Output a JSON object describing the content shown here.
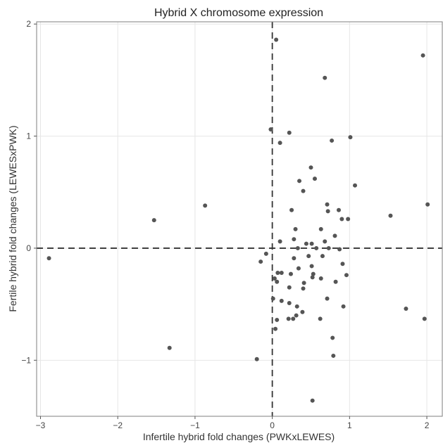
{
  "chart_data": {
    "type": "scatter",
    "title": "Hybrid X chromosome expression",
    "xlabel": "Infertile hybrid fold changes (PWKxLEWES)",
    "ylabel": "Fertile hybrid fold changes (LEWESxPWK)",
    "xlim": [
      -3.05,
      2.2
    ],
    "ylim": [
      -1.5,
      2.02
    ],
    "x_ticks": [
      -3,
      -2,
      -1,
      0,
      1,
      2
    ],
    "x_tick_labels": [
      "−3",
      "−2",
      "−1",
      "0",
      "1",
      "2"
    ],
    "y_ticks": [
      -1,
      0,
      1,
      2
    ],
    "y_tick_labels": [
      "−1",
      "0",
      "1",
      "2"
    ],
    "grid": true,
    "reference_lines": [
      {
        "axis": "x",
        "value": 0,
        "style": "dashed"
      },
      {
        "axis": "y",
        "value": 0,
        "style": "dashed"
      }
    ],
    "colors": {
      "points": "#555555",
      "grid": "#e6e6e6",
      "panel_border": "#7f7f7f",
      "reference": "#333333"
    },
    "points": [
      {
        "x": 0.05,
        "y": 1.86
      },
      {
        "x": 1.95,
        "y": 1.72
      },
      {
        "x": 0.68,
        "y": 1.52
      },
      {
        "x": -0.02,
        "y": 1.06
      },
      {
        "x": 0.22,
        "y": 1.03
      },
      {
        "x": 1.01,
        "y": 0.99
      },
      {
        "x": 0.77,
        "y": 0.96
      },
      {
        "x": 0.1,
        "y": 0.94
      },
      {
        "x": 0.5,
        "y": 0.72
      },
      {
        "x": 0.55,
        "y": 0.62
      },
      {
        "x": 0.35,
        "y": 0.6
      },
      {
        "x": 1.07,
        "y": 0.56
      },
      {
        "x": 0.4,
        "y": 0.51
      },
      {
        "x": 0.71,
        "y": 0.39
      },
      {
        "x": 2.01,
        "y": 0.39
      },
      {
        "x": -0.87,
        "y": 0.38
      },
      {
        "x": 0.25,
        "y": 0.34
      },
      {
        "x": 0.86,
        "y": 0.34
      },
      {
        "x": 0.72,
        "y": 0.33
      },
      {
        "x": 1.53,
        "y": 0.29
      },
      {
        "x": 0.9,
        "y": 0.26
      },
      {
        "x": 0.98,
        "y": 0.26
      },
      {
        "x": -1.53,
        "y": 0.25
      },
      {
        "x": 0.3,
        "y": 0.17
      },
      {
        "x": 0.63,
        "y": 0.17
      },
      {
        "x": 0.81,
        "y": 0.11
      },
      {
        "x": 0.28,
        "y": 0.08
      },
      {
        "x": 0.1,
        "y": 0.06
      },
      {
        "x": 0.44,
        "y": 0.04
      },
      {
        "x": 0.51,
        "y": 0.04
      },
      {
        "x": 0.68,
        "y": 0.06
      },
      {
        "x": 0.33,
        "y": 0.0
      },
      {
        "x": 0.57,
        "y": 0.0
      },
      {
        "x": 0.73,
        "y": 0.0
      },
      {
        "x": 0.87,
        "y": -0.01
      },
      {
        "x": -0.08,
        "y": -0.05
      },
      {
        "x": 0.47,
        "y": -0.07
      },
      {
        "x": 0.65,
        "y": -0.07
      },
      {
        "x": 0.28,
        "y": -0.09
      },
      {
        "x": -2.89,
        "y": -0.09
      },
      {
        "x": -0.15,
        "y": -0.12
      },
      {
        "x": 0.51,
        "y": -0.16
      },
      {
        "x": 0.91,
        "y": -0.14
      },
      {
        "x": 0.34,
        "y": -0.18
      },
      {
        "x": 0.07,
        "y": -0.22
      },
      {
        "x": 0.12,
        "y": -0.22
      },
      {
        "x": 0.24,
        "y": -0.23
      },
      {
        "x": 0.53,
        "y": -0.23
      },
      {
        "x": 0.96,
        "y": -0.24
      },
      {
        "x": 0.52,
        "y": -0.26
      },
      {
        "x": 0.03,
        "y": -0.27
      },
      {
        "x": 0.63,
        "y": -0.27
      },
      {
        "x": 0.06,
        "y": -0.3
      },
      {
        "x": 0.41,
        "y": -0.31
      },
      {
        "x": 0.82,
        "y": -0.3
      },
      {
        "x": 0.22,
        "y": -0.35
      },
      {
        "x": 0.4,
        "y": -0.36
      },
      {
        "x": 0.71,
        "y": -0.45
      },
      {
        "x": 0.01,
        "y": -0.45
      },
      {
        "x": 0.12,
        "y": -0.47
      },
      {
        "x": 0.22,
        "y": -0.49
      },
      {
        "x": 0.32,
        "y": -0.52
      },
      {
        "x": 0.92,
        "y": -0.52
      },
      {
        "x": 1.73,
        "y": -0.54
      },
      {
        "x": 0.39,
        "y": -0.57
      },
      {
        "x": 0.31,
        "y": -0.6
      },
      {
        "x": 0.21,
        "y": -0.63
      },
      {
        "x": 0.27,
        "y": -0.63
      },
      {
        "x": 0.06,
        "y": -0.64
      },
      {
        "x": 0.62,
        "y": -0.63
      },
      {
        "x": 1.97,
        "y": -0.63
      },
      {
        "x": 0.04,
        "y": -0.72
      },
      {
        "x": 0.78,
        "y": -0.8
      },
      {
        "x": -1.33,
        "y": -0.89
      },
      {
        "x": 0.79,
        "y": -0.96
      },
      {
        "x": -0.2,
        "y": -0.99
      },
      {
        "x": 0.52,
        "y": -1.36
      }
    ]
  }
}
